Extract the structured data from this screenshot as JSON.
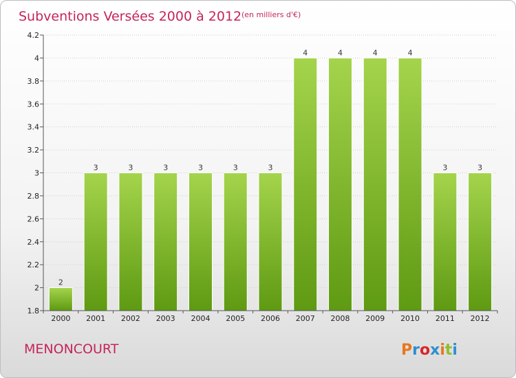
{
  "header": {
    "title": "Subventions Versées 2000 à 2012",
    "unit": "(en milliers d'€)"
  },
  "footer": {
    "commune": "MENONCOURT",
    "logo": "Proxiti",
    "logo_colors": [
      "#e8771e",
      "#2e8fcf",
      "#d8262a",
      "#2e8fcf",
      "#e8771e",
      "#8dbf2e",
      "#2e8fcf"
    ]
  },
  "colors": {
    "bar_light": "#a4d44c",
    "bar_dark": "#5e9a12",
    "grid": "#cfcfcf",
    "accent": "#c4245c"
  },
  "chart_data": {
    "type": "bar",
    "title": "Subventions Versées 2000 à 2012",
    "subtitle": "(en milliers d'€)",
    "xlabel": "",
    "ylabel": "",
    "categories": [
      "2000",
      "2001",
      "2002",
      "2003",
      "2004",
      "2005",
      "2006",
      "2007",
      "2008",
      "2009",
      "2010",
      "2011",
      "2012"
    ],
    "values": [
      2,
      3,
      3,
      3,
      3,
      3,
      3,
      4,
      4,
      4,
      4,
      3,
      3
    ],
    "value_labels": [
      "2",
      "3",
      "3",
      "3",
      "3",
      "3",
      "3",
      "4",
      "4",
      "4",
      "4",
      "3",
      "3"
    ],
    "ylim": [
      1.8,
      4.2
    ],
    "yticks": [
      1.8,
      2,
      2.2,
      2.4,
      2.6,
      2.8,
      3,
      3.2,
      3.4,
      3.6,
      3.8,
      4,
      4.2
    ],
    "ytick_labels": [
      "1.8",
      "2",
      "2.2",
      "2.4",
      "2.6",
      "2.8",
      "3",
      "3.2",
      "3.4",
      "3.6",
      "3.8",
      "4",
      "4.2"
    ],
    "grid": true,
    "grid_style": "dotted horizontal",
    "legend": "none"
  }
}
